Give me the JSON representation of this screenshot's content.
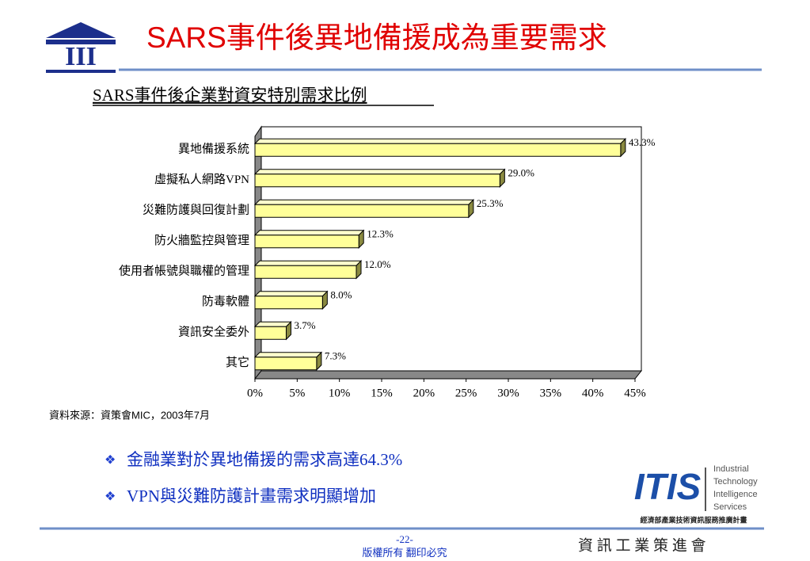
{
  "slide": {
    "logo": "III",
    "title": "SARS事件後異地備援成為重要需求",
    "source": "資料來源：資策會MIC，2003年7月",
    "bullets": [
      "金融業對於異地備援的需求高達64.3%",
      "VPN與災難防護計畫需求明顯增加"
    ],
    "brand": {
      "mark": "ITIS",
      "lines": [
        "Industrial",
        "Technology",
        "Intelligence",
        "Services"
      ],
      "caption": "經濟部產業技術資訊服務推廣計畫"
    },
    "page": "-22-",
    "copyright": "版權所有  翻印必究",
    "org": "資 訊 工 業 策 進 會"
  },
  "chart_data": {
    "type": "hbar",
    "title": "SARS事件後企業對資安特別需求比例",
    "categories": [
      "異地備援系統",
      "虛擬私人網路VPN",
      "災難防護與回復計劃",
      "防火牆監控與管理",
      "使用者帳號與職權的管理",
      "防毒軟體",
      "資訊安全委外",
      "其它"
    ],
    "values": [
      43.3,
      29.0,
      25.3,
      12.3,
      12.0,
      8.0,
      3.7,
      7.3
    ],
    "value_labels": [
      "43.3%",
      "29.0%",
      "25.3%",
      "12.3%",
      "12.0%",
      "8.0%",
      "3.7%",
      "7.3%"
    ],
    "color": "#ffff99",
    "xlim": [
      0,
      45
    ],
    "xticks": [
      {
        "value": 0,
        "label": "0%"
      },
      {
        "value": 5,
        "label": "5%"
      },
      {
        "value": 10,
        "label": "10%"
      },
      {
        "value": 15,
        "label": "15%"
      },
      {
        "value": 20,
        "label": "20%"
      },
      {
        "value": 25,
        "label": "25%"
      },
      {
        "value": 30,
        "label": "30%"
      },
      {
        "value": 35,
        "label": "35%"
      },
      {
        "value": 40,
        "label": "40%"
      },
      {
        "value": 45,
        "label": "45%"
      }
    ]
  }
}
